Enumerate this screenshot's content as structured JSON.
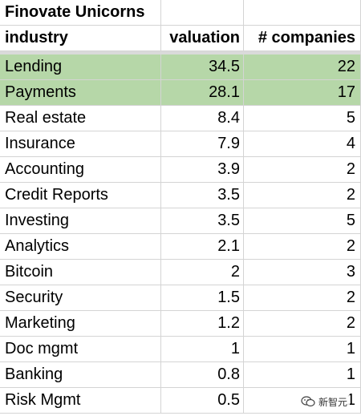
{
  "sheet": {
    "title": "Finovate Unicorns",
    "headers": {
      "industry": "industry",
      "valuation": "valuation",
      "companies": "# companies"
    },
    "highlight_color": "#b6d7a8",
    "rows": [
      {
        "industry": "Lending",
        "valuation": "34.5",
        "companies": "22",
        "highlighted": true
      },
      {
        "industry": "Payments",
        "valuation": "28.1",
        "companies": "17",
        "highlighted": true
      },
      {
        "industry": "Real estate",
        "valuation": "8.4",
        "companies": "5",
        "highlighted": false
      },
      {
        "industry": "Insurance",
        "valuation": "7.9",
        "companies": "4",
        "highlighted": false
      },
      {
        "industry": "Accounting",
        "valuation": "3.9",
        "companies": "2",
        "highlighted": false
      },
      {
        "industry": "Credit Reports",
        "valuation": "3.5",
        "companies": "2",
        "highlighted": false
      },
      {
        "industry": "Investing",
        "valuation": "3.5",
        "companies": "5",
        "highlighted": false
      },
      {
        "industry": "Analytics",
        "valuation": "2.1",
        "companies": "2",
        "highlighted": false
      },
      {
        "industry": "Bitcoin",
        "valuation": "2",
        "companies": "3",
        "highlighted": false
      },
      {
        "industry": "Security",
        "valuation": "1.5",
        "companies": "2",
        "highlighted": false
      },
      {
        "industry": "Marketing",
        "valuation": "1.2",
        "companies": "2",
        "highlighted": false
      },
      {
        "industry": "Doc mgmt",
        "valuation": "1",
        "companies": "1",
        "highlighted": false
      },
      {
        "industry": "Banking",
        "valuation": "0.8",
        "companies": "1",
        "highlighted": false
      },
      {
        "industry": "Risk Mgmt",
        "valuation": "0.5",
        "companies": "1",
        "highlighted": false
      }
    ]
  },
  "watermark": {
    "icon": "wechat-icon",
    "text": "新智元"
  }
}
